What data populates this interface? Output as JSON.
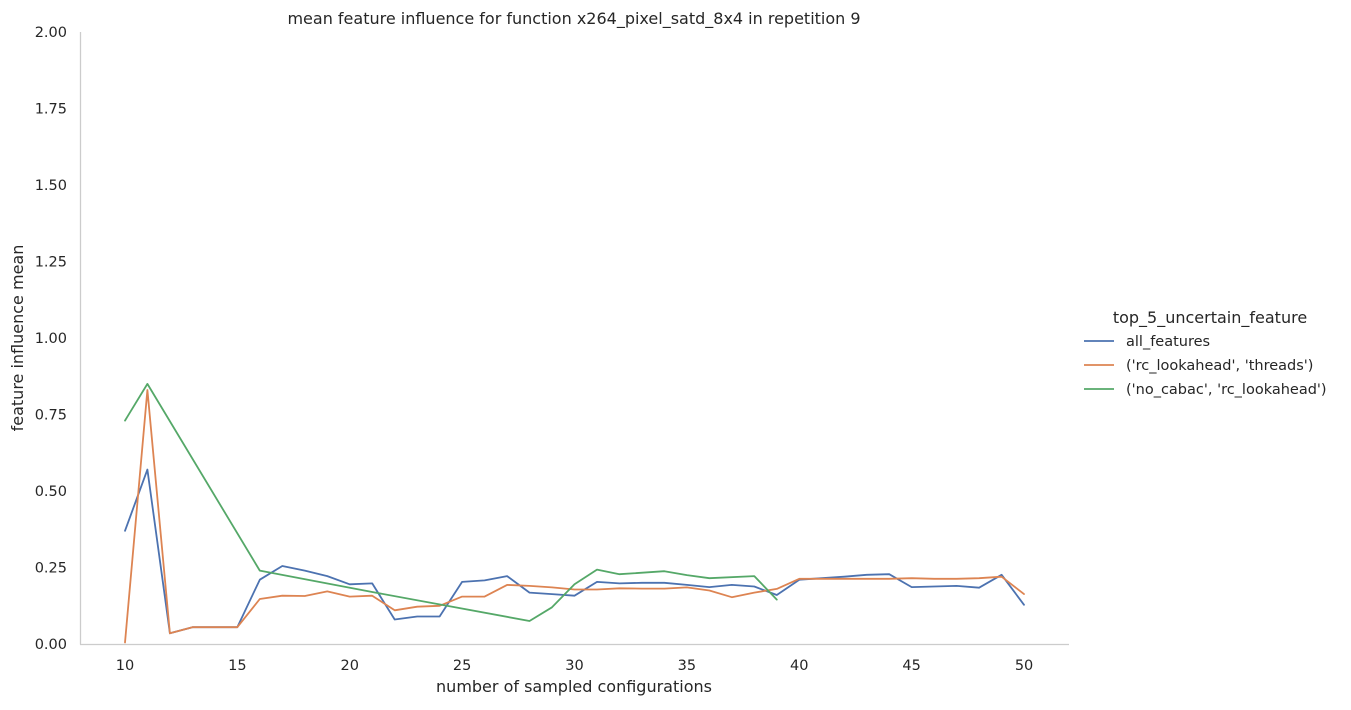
{
  "chart_data": {
    "type": "line",
    "title": "mean feature influence for function x264_pixel_satd_8x4 in repetition 9",
    "xlabel": "number of sampled configurations",
    "ylabel": "feature influence mean",
    "xlim": [
      8,
      52
    ],
    "ylim": [
      0,
      2
    ],
    "xticks": [
      10,
      15,
      20,
      25,
      30,
      35,
      40,
      45,
      50
    ],
    "yticks": [
      0,
      0.25,
      0.5,
      0.75,
      1,
      1.25,
      1.5,
      1.75,
      2
    ],
    "ytick_labels": [
      "0.00",
      "0.25",
      "0.50",
      "0.75",
      "1.00",
      "1.25",
      "1.50",
      "1.75",
      "2.00"
    ],
    "grid": false,
    "legend": {
      "title": "top_5_uncertain_feature",
      "placement": "right-center"
    },
    "series": [
      {
        "name": "all_features",
        "color": "#4c72b0",
        "x": [
          10,
          11,
          12,
          13,
          14,
          15,
          16,
          17,
          18,
          19,
          20,
          21,
          22,
          23,
          24,
          25,
          26,
          27,
          28,
          29,
          30,
          31,
          32,
          33,
          34,
          35,
          36,
          37,
          38,
          39,
          40,
          41,
          42,
          43,
          44,
          45,
          46,
          47,
          48,
          49,
          50
        ],
        "y": [
          0.37,
          0.57,
          0.035,
          0.055,
          0.055,
          0.055,
          0.21,
          0.255,
          0.24,
          0.222,
          0.195,
          0.198,
          0.08,
          0.09,
          0.09,
          0.203,
          0.208,
          0.222,
          0.168,
          0.163,
          0.158,
          0.203,
          0.198,
          0.2,
          0.2,
          0.193,
          0.186,
          0.193,
          0.188,
          0.16,
          0.21,
          0.215,
          0.22,
          0.226,
          0.228,
          0.186,
          0.188,
          0.19,
          0.184,
          0.226,
          0.128
        ]
      },
      {
        "name": "('rc_lookahead', 'threads')",
        "color": "#dd8452",
        "x": [
          10,
          11,
          12,
          13,
          14,
          15,
          16,
          17,
          18,
          19,
          20,
          21,
          22,
          23,
          24,
          25,
          26,
          27,
          28,
          29,
          30,
          31,
          32,
          33,
          34,
          35,
          36,
          37,
          38,
          39,
          40,
          41,
          42,
          43,
          44,
          45,
          46,
          47,
          48,
          49,
          50
        ],
        "y": [
          0.005,
          0.83,
          0.035,
          0.055,
          0.055,
          0.055,
          0.147,
          0.158,
          0.157,
          0.172,
          0.155,
          0.158,
          0.11,
          0.122,
          0.125,
          0.155,
          0.155,
          0.193,
          0.19,
          0.185,
          0.178,
          0.178,
          0.182,
          0.181,
          0.181,
          0.185,
          0.175,
          0.153,
          0.168,
          0.18,
          0.213,
          0.213,
          0.213,
          0.213,
          0.213,
          0.215,
          0.213,
          0.213,
          0.215,
          0.22,
          0.163
        ]
      },
      {
        "name": "('no_cabac', 'rc_lookahead')",
        "color": "#55a868",
        "x": [
          10,
          11,
          16,
          21,
          28,
          29,
          30,
          31,
          32,
          34,
          35,
          36,
          38,
          39
        ],
        "y": [
          0.73,
          0.85,
          0.24,
          0.17,
          0.075,
          0.12,
          0.195,
          0.243,
          0.228,
          0.238,
          0.225,
          0.215,
          0.222,
          0.145
        ]
      }
    ]
  }
}
